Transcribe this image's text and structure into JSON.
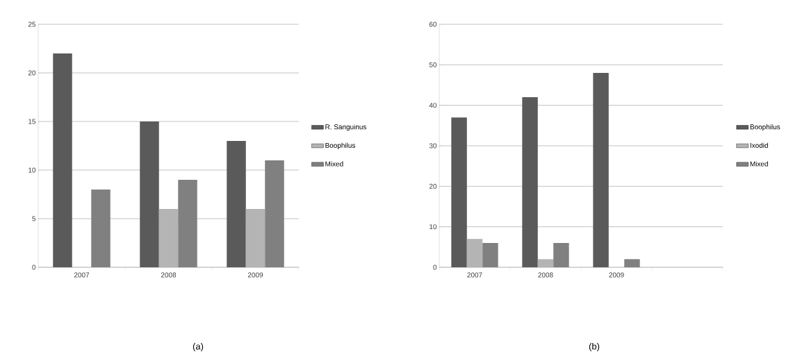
{
  "chart_data": [
    {
      "type": "bar",
      "categories": [
        "2007",
        "2008",
        "2009"
      ],
      "series": [
        {
          "name": "R. Sanguinus",
          "color": "#5a5a5a",
          "values": [
            22,
            15,
            13
          ]
        },
        {
          "name": "Boophilus",
          "color": "#b4b4b4",
          "values": [
            0,
            6,
            6
          ]
        },
        {
          "name": "Mixed",
          "color": "#808080",
          "values": [
            8,
            9,
            11
          ]
        }
      ],
      "ylim": [
        0,
        25
      ],
      "yticks": [
        0,
        5,
        10,
        15,
        20,
        25
      ],
      "grid": "y",
      "legend": "right",
      "annotations": [
        "(a)"
      ]
    },
    {
      "type": "bar",
      "categories": [
        "2007",
        "2008",
        "2009",
        null
      ],
      "series": [
        {
          "name": "Boophilus",
          "color": "#5a5a5a",
          "values": [
            37,
            42,
            48,
            null
          ]
        },
        {
          "name": "Ixodid",
          "color": "#b4b4b4",
          "values": [
            7,
            2,
            0,
            null
          ]
        },
        {
          "name": "Mixed",
          "color": "#808080",
          "values": [
            6,
            6,
            2,
            null
          ]
        }
      ],
      "ylim": [
        0,
        60
      ],
      "yticks": [
        0,
        10,
        20,
        30,
        40,
        50,
        60
      ],
      "grid": "y",
      "legend": "right",
      "annotations": [
        "(b)"
      ]
    }
  ]
}
